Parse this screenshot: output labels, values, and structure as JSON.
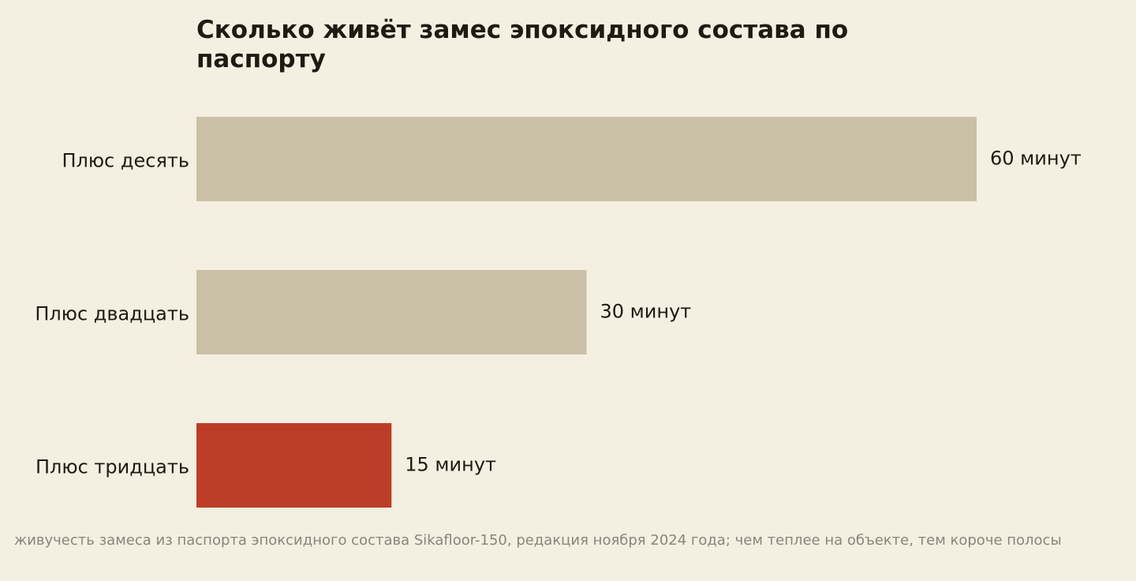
{
  "chart_data": {
    "type": "bar",
    "orientation": "horizontal",
    "title": "Сколько живёт замес эпоксидного состава по паспорту",
    "categories": [
      "Плюс десять",
      "Плюс двадцать",
      "Плюс тридцать"
    ],
    "values": [
      60,
      30,
      15
    ],
    "value_labels": [
      "60 минут",
      "30 минут",
      "15 минут"
    ],
    "bar_colors": [
      "#c9c0a7",
      "#c9c0a7",
      "#bc3d27"
    ],
    "xlim": [
      0,
      60
    ],
    "grid": false,
    "note": "живучесть замеса из паспорта эпоксидного состава Sikafloor-150, редакция ноября 2024 года; чем теплее на объекте, тем короче полосы"
  },
  "colors": {
    "background": "#f5efe2",
    "text": "#1f1a12",
    "muted_text": "#8a847a"
  }
}
